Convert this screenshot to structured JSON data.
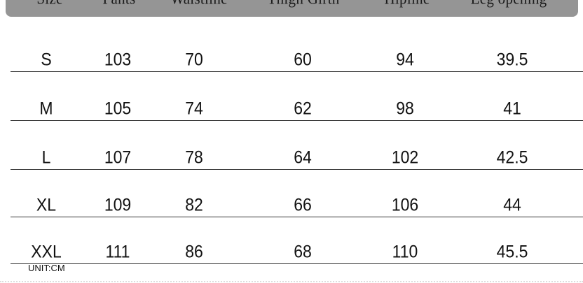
{
  "table": {
    "headers": [
      "Size",
      "Pants",
      "Waistline",
      "Thigh Girth",
      "Hipline",
      "Leg opening"
    ],
    "rows": [
      [
        "S",
        "103",
        "70",
        "60",
        "94",
        "39.5"
      ],
      [
        "M",
        "105",
        "74",
        "62",
        "98",
        "41"
      ],
      [
        "L",
        "107",
        "78",
        "64",
        "102",
        "42.5"
      ],
      [
        "XL",
        "109",
        "82",
        "66",
        "106",
        "44"
      ],
      [
        "XXL",
        "111",
        "86",
        "68",
        "110",
        "45.5"
      ]
    ],
    "unit_label": "UNIT:CM"
  },
  "colors": {
    "header_bg": "#959595",
    "text": "#111111",
    "rule": "#333333"
  }
}
